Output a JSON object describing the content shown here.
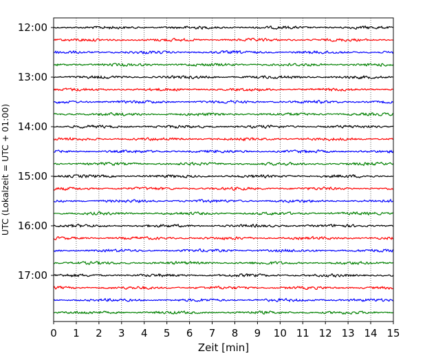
{
  "chart_data": {
    "type": "line",
    "title": "",
    "xlabel": "Zeit  [min]",
    "ylabel": "UTC (Lokalzeit = UTC + 01:00)",
    "xlim": [
      0,
      15
    ],
    "x_ticks": [
      "0",
      "1",
      "2",
      "3",
      "4",
      "5",
      "6",
      "7",
      "8",
      "9",
      "10",
      "11",
      "12",
      "13",
      "14",
      "15"
    ],
    "y_ticks": [
      "12:00",
      "13:00",
      "14:00",
      "15:00",
      "16:00",
      "17:00"
    ],
    "grid": "vertical dotted lines at each minute",
    "trace_interval_min": 15,
    "start_time": "12:00",
    "trace_count": 24,
    "trace_colors": [
      "#000000",
      "#ff0000",
      "#0000ff",
      "#008000"
    ],
    "trace_amplitude_note": "seismic noise traces, amplitude small and roughly constant"
  }
}
